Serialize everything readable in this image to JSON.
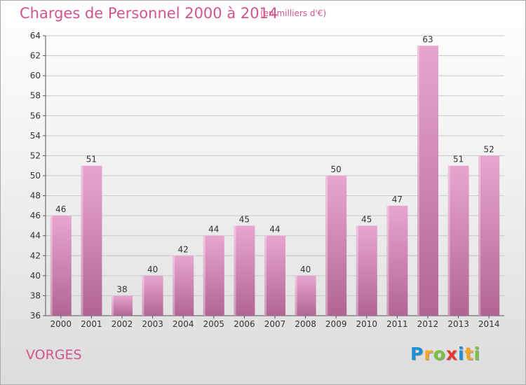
{
  "header": {
    "title": "Charges de Personnel 2000 à 2014",
    "subtitle": "(en milliers d'€)"
  },
  "footer": {
    "commune": "VORGES",
    "brand": "Proxiti",
    "brand_letters": [
      {
        "ch": "P",
        "color": "#1d8fd6"
      },
      {
        "ch": "r",
        "color": "#f5a623"
      },
      {
        "ch": "o",
        "color": "#7ac143"
      },
      {
        "ch": "x",
        "color": "#e8362b"
      },
      {
        "ch": "i",
        "color": "#1d8fd6"
      },
      {
        "ch": "t",
        "color": "#f5a623"
      },
      {
        "ch": "i",
        "color": "#7ac143"
      }
    ]
  },
  "colors": {
    "accent": "#d2548f",
    "bar_top": "#e8a6cf",
    "bar_bottom": "#b16593",
    "grid": "#c8c8c8",
    "axis_text": "#333333"
  },
  "chart_data": {
    "type": "bar",
    "title": "Charges de Personnel 2000 à 2014",
    "subtitle": "(en milliers d'€)",
    "categories": [
      "2000",
      "2001",
      "2002",
      "2003",
      "2004",
      "2005",
      "2006",
      "2007",
      "2008",
      "2009",
      "2010",
      "2011",
      "2012",
      "2013",
      "2014"
    ],
    "values": [
      46,
      51,
      38,
      40,
      42,
      44,
      45,
      44,
      40,
      50,
      45,
      47,
      63,
      51,
      52
    ],
    "ylim": [
      36,
      64
    ],
    "yticks": [
      36,
      38,
      40,
      42,
      44,
      46,
      48,
      50,
      52,
      54,
      56,
      58,
      60,
      62,
      64
    ],
    "grid": true,
    "data_labels": true,
    "xlabel": "",
    "ylabel": ""
  }
}
